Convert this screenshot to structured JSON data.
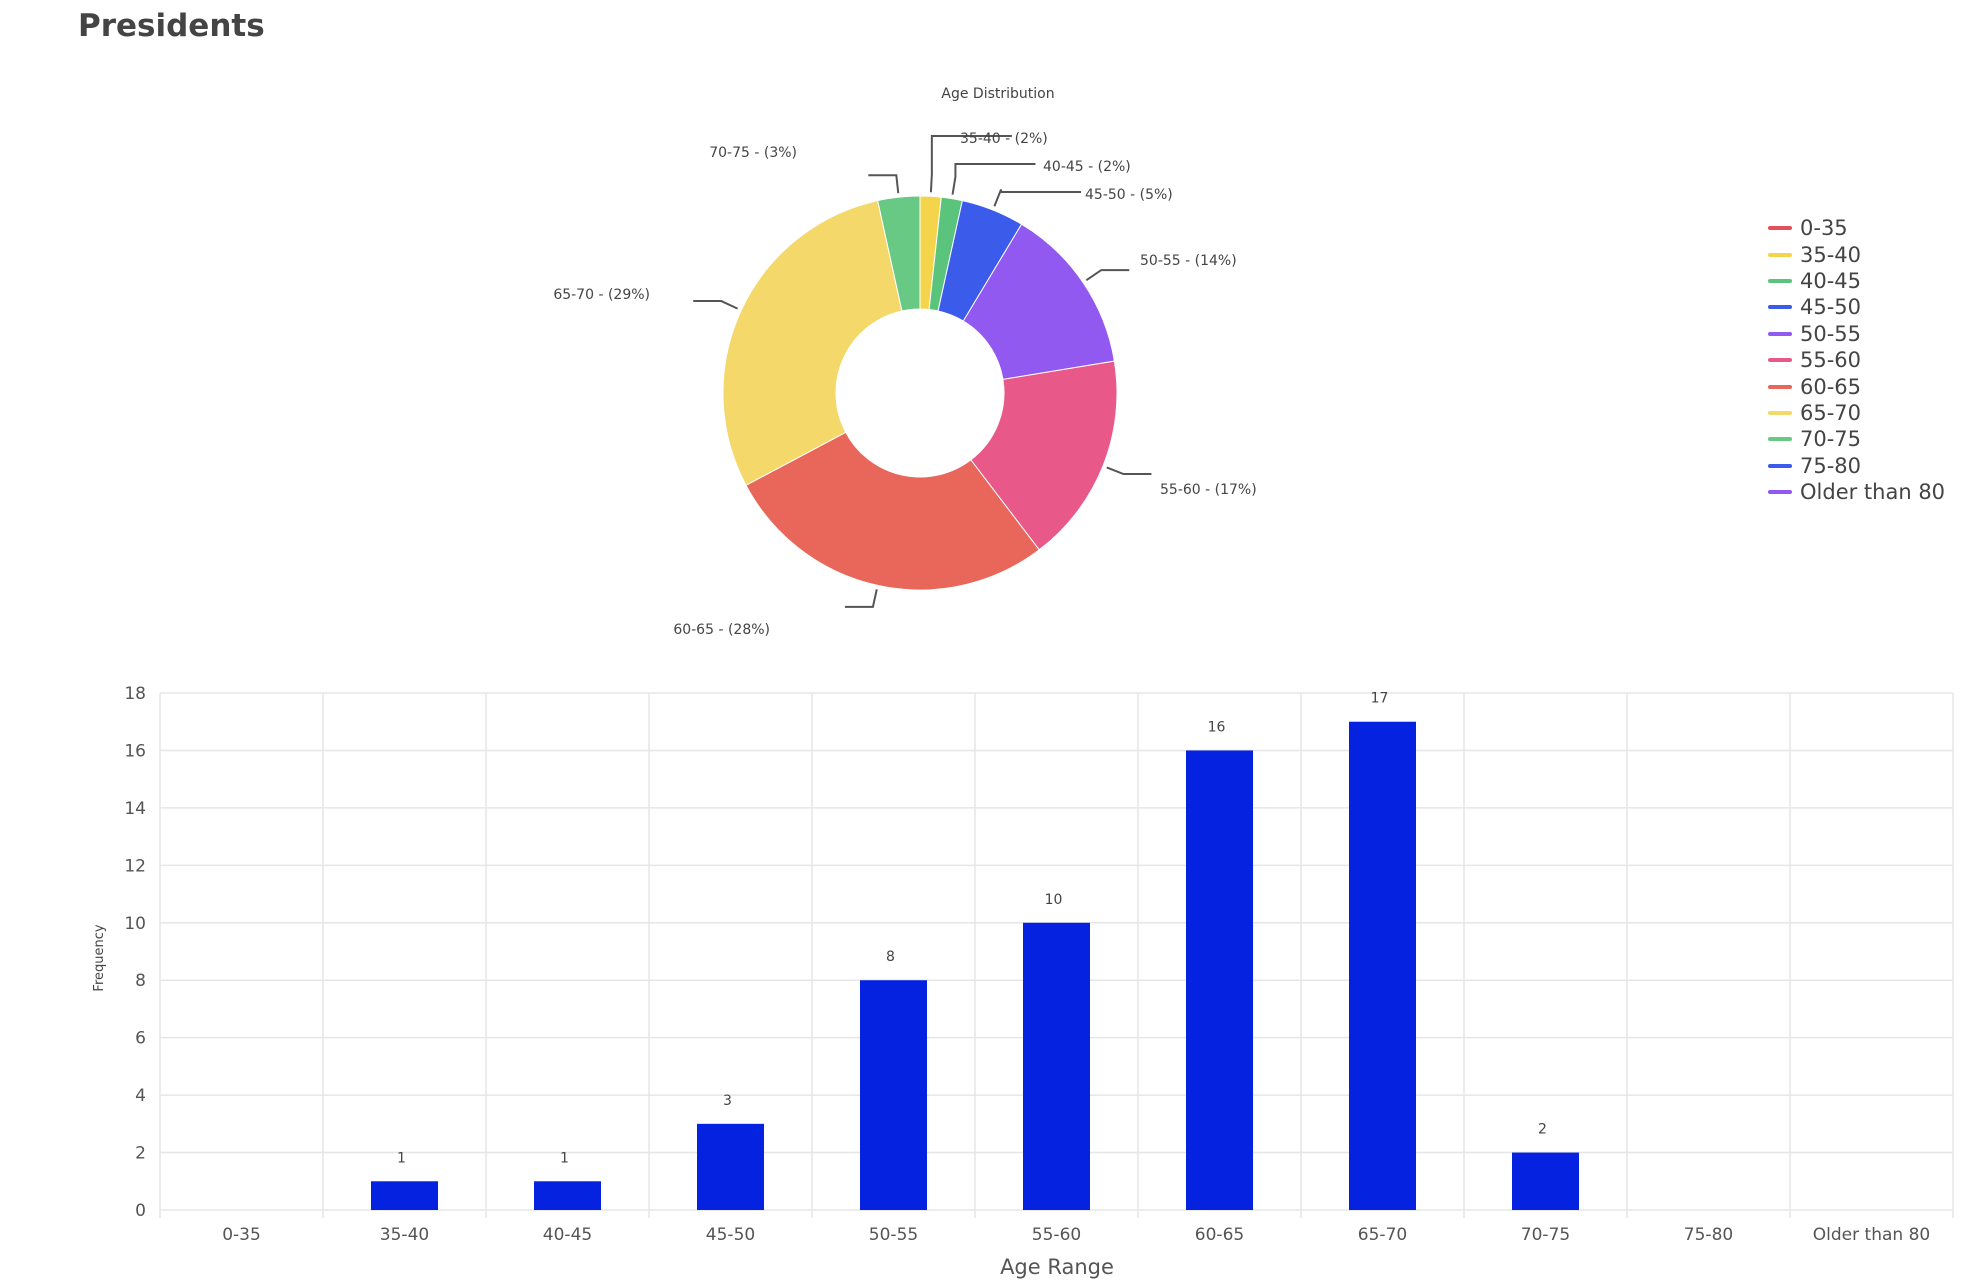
{
  "page": {
    "title": "Presidents"
  },
  "chart_data": [
    {
      "type": "pie",
      "donut": true,
      "title": "Age Distribution",
      "slices": [
        {
          "label": "35-40 - (2%)",
          "category": "35-40",
          "value": 1,
          "percent": 2,
          "color": "#f4d44a"
        },
        {
          "label": "40-45 - (2%)",
          "category": "40-45",
          "value": 1,
          "percent": 2,
          "color": "#5bc47c"
        },
        {
          "label": "45-50 - (5%)",
          "category": "45-50",
          "value": 3,
          "percent": 5,
          "color": "#3b5bea"
        },
        {
          "label": "50-55 - (14%)",
          "category": "50-55",
          "value": 8,
          "percent": 14,
          "color": "#9259f0"
        },
        {
          "label": "55-60 - (17%)",
          "category": "55-60",
          "value": 10,
          "percent": 17,
          "color": "#e8598a"
        },
        {
          "label": "60-65 - (28%)",
          "category": "60-65",
          "value": 16,
          "percent": 28,
          "color": "#e8675a"
        },
        {
          "label": "65-70 - (29%)",
          "category": "65-70",
          "value": 17,
          "percent": 29,
          "color": "#f4d96a"
        },
        {
          "label": "70-75 - (3%)",
          "category": "70-75",
          "value": 2,
          "percent": 3,
          "color": "#68c984"
        }
      ],
      "legend": {
        "position": "right",
        "items": [
          {
            "label": "0-35",
            "color": "#e2515b"
          },
          {
            "label": "35-40",
            "color": "#f4d44a"
          },
          {
            "label": "40-45",
            "color": "#5bc47c"
          },
          {
            "label": "45-50",
            "color": "#3b5bea"
          },
          {
            "label": "50-55",
            "color": "#9259f0"
          },
          {
            "label": "55-60",
            "color": "#e8598a"
          },
          {
            "label": "60-65",
            "color": "#e8675a"
          },
          {
            "label": "65-70",
            "color": "#f4d96a"
          },
          {
            "label": "70-75",
            "color": "#68c984"
          },
          {
            "label": "75-80",
            "color": "#3b5bea"
          },
          {
            "label": "Older than 80",
            "color": "#9259f0"
          }
        ]
      }
    },
    {
      "type": "bar",
      "title": "",
      "xlabel": "Age Range",
      "ylabel": "Frequency",
      "ylim": [
        0,
        18
      ],
      "yticks": [
        0,
        2,
        4,
        6,
        8,
        10,
        12,
        14,
        16,
        18
      ],
      "grid": true,
      "bar_color": "#0422e0",
      "categories": [
        "0-35",
        "35-40",
        "40-45",
        "45-50",
        "50-55",
        "55-60",
        "60-65",
        "65-70",
        "70-75",
        "75-80",
        "Older than 80"
      ],
      "values": [
        0,
        1,
        1,
        3,
        8,
        10,
        16,
        17,
        2,
        0,
        0
      ]
    }
  ]
}
